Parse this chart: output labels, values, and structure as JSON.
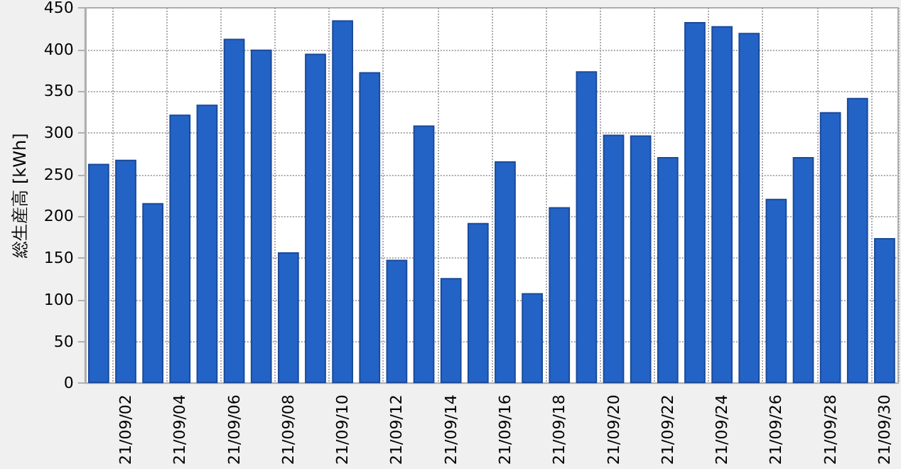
{
  "chart_data": {
    "type": "bar",
    "ylabel": "総生産高 [kWh]",
    "categories": [
      null,
      "21/09/02",
      null,
      "21/09/04",
      null,
      "21/09/06",
      null,
      "21/09/08",
      null,
      "21/09/10",
      null,
      "21/09/12",
      null,
      "21/09/14",
      null,
      "21/09/16",
      null,
      "21/09/18",
      null,
      "21/09/20",
      null,
      "21/09/22",
      null,
      "21/09/24",
      null,
      "21/09/26",
      null,
      "21/09/28",
      null,
      "21/09/30"
    ],
    "values": [
      263,
      268,
      216,
      322,
      334,
      413,
      400,
      157,
      395,
      435,
      373,
      148,
      309,
      126,
      192,
      266,
      108,
      211,
      374,
      298,
      297,
      271,
      433,
      428,
      420,
      221,
      271,
      325,
      342,
      174
    ],
    "color": "#2463c6",
    "ylim": [
      0,
      450
    ],
    "yticks": [
      0,
      50,
      100,
      150,
      200,
      250,
      300,
      350,
      400,
      450
    ],
    "grid": true
  }
}
